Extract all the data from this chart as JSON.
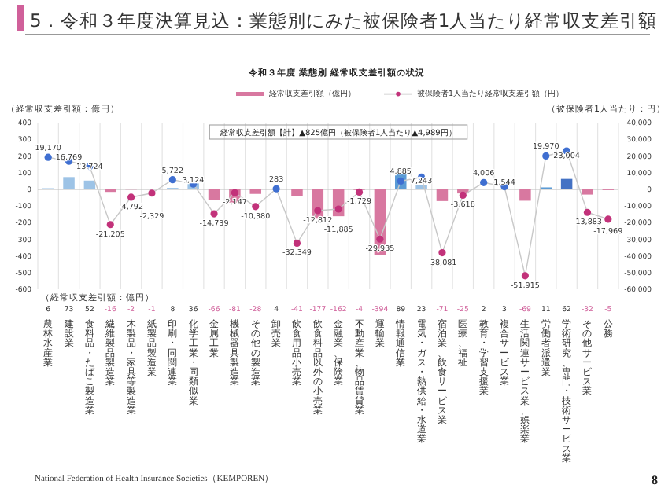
{
  "chart_data": {
    "type": "bar",
    "title": "5．令和３年度決算見込：業態別にみた被保険者1人当たり経常収支差引額",
    "subtitle": "令和３年度 業態別 経常収支差引額の状況",
    "ylabel": "（経常収支差引額：億円）",
    "y2label": "（被保険者1人当たり：円）",
    "categories": [
      "農林水産業",
      "建設業",
      "食料品・たばこ製造業",
      "繊維製品製造業",
      "木製品・家具等製造業",
      "紙製品製造業",
      "印刷・同関連業",
      "化学工業・同類似業",
      "金属工業",
      "機械器具製造業",
      "その他の製造業",
      "卸売業",
      "飲食用品小売業",
      "飲食料品以外の小売業",
      "金融業、保険業",
      "不動産業、物品賃貸業",
      "運輸業",
      "情報通信業",
      "電気・ガス・熱供給・水道業",
      "宿泊業、飲食サービス業",
      "医療、福祉",
      "教育・学習支援業",
      "複合サービス業",
      "生活関連サービス業、娯楽業",
      "労働者派遣業",
      "学術研究、専門・技術サービス業",
      "その他サービス業",
      "公務"
    ],
    "series": [
      {
        "name": "経常収支差引額（億円）",
        "color": "#d878a0",
        "colors": [
          "#9dc3e6",
          "#9dc3e6",
          "#9dc3e6",
          "#d878a0",
          "#d878a0",
          "#d878a0",
          "#9dc3e6",
          "#9dc3e6",
          "#d878a0",
          "#d878a0",
          "#d878a0",
          "#9dc3e6",
          "#d878a0",
          "#d878a0",
          "#d878a0",
          "#d878a0",
          "#d878a0",
          "#5b9bd5",
          "#9dc3e6",
          "#d878a0",
          "#d878a0",
          "#9dc3e6",
          "#9dc3e6",
          "#d878a0",
          "#5b9bd5",
          "#4472c4",
          "#d878a0",
          "#d878a0"
        ],
        "values": [
          6,
          73,
          52,
          -16,
          -2,
          -1,
          8,
          36,
          -66,
          -81,
          -28,
          4,
          -41,
          -177,
          -162,
          -4,
          -394,
          89,
          23,
          -71,
          -25,
          2,
          3,
          -69,
          11,
          62,
          -32,
          -5
        ]
      },
      {
        "name": "被保険者1人当たり経常収支差引額（円）",
        "type": "line",
        "axis": "y2",
        "color": "#c8c8c8",
        "colors": [
          "#3f6fd1",
          "#3f6fd1",
          "#3f6fd1",
          "#c2327a",
          "#c2327a",
          "#c2327a",
          "#3f6fd1",
          "#3f6fd1",
          "#c2327a",
          "#c2327a",
          "#c2327a",
          "#3f6fd1",
          "#c2327a",
          "#c2327a",
          "#c2327a",
          "#c2327a",
          "#c2327a",
          "#3f6fd1",
          "#3f6fd1",
          "#c2327a",
          "#c2327a",
          "#3f6fd1",
          "#3f6fd1",
          "#c2327a",
          "#3f6fd1",
          "#3f6fd1",
          "#c2327a",
          "#c2327a"
        ],
        "values": [
          19170,
          16769,
          13724,
          -21205,
          -4792,
          -2329,
          5722,
          3124,
          -14739,
          -2147,
          -10380,
          283,
          -32349,
          -12812,
          -11885,
          -1729,
          -29935,
          4885,
          7243,
          -38081,
          -3618,
          4006,
          1544,
          -51915,
          19970,
          23004,
          -13883,
          -17969
        ],
        "value_labels": [
          "19,170",
          "16,769",
          "13,724",
          "-21,205",
          "-4,792",
          "-2,329",
          "5,722",
          "3,124",
          "-14,739",
          "-2,147",
          "-10,380",
          "283",
          "-32,349",
          "-12,812",
          "-11,885",
          "-1,729",
          "-29,935",
          "4,885",
          "7,243",
          "-38,081",
          "-3,618",
          "4,006",
          "1,544",
          "-51,915",
          "19,970",
          "23,004",
          "-13,883",
          "-17,969"
        ]
      }
    ],
    "ylim": [
      -600,
      400
    ],
    "yticks": [
      -600,
      -500,
      -400,
      -300,
      -200,
      -100,
      0,
      100,
      200,
      300,
      400
    ],
    "y2lim": [
      -60000,
      40000
    ],
    "y2ticks": [
      {
        "value": -60000,
        "label": "-60,000"
      },
      {
        "value": -50000,
        "label": "-50,000"
      },
      {
        "value": -40000,
        "label": "-40,000"
      },
      {
        "value": -30000,
        "label": "-30,000"
      },
      {
        "value": -20000,
        "label": "-20,000"
      },
      {
        "value": -10000,
        "label": "-10,000"
      },
      0,
      {
        "value": 10000,
        "label": "10,000"
      },
      {
        "value": 20000,
        "label": "20,000"
      },
      {
        "value": 30000,
        "label": "30,000"
      },
      {
        "value": 40000,
        "label": "40,000"
      }
    ],
    "grid": "x",
    "legend": "top",
    "marker": "circle",
    "data_labels": true,
    "annotations": [
      "経常収支差引額【計】▲825億円（被保険者1人当たり▲4,989円）",
      "（経常収支差引額：億円）",
      "National Federation of Health Insurance Societies（KEMPOREN）",
      "8"
    ]
  }
}
